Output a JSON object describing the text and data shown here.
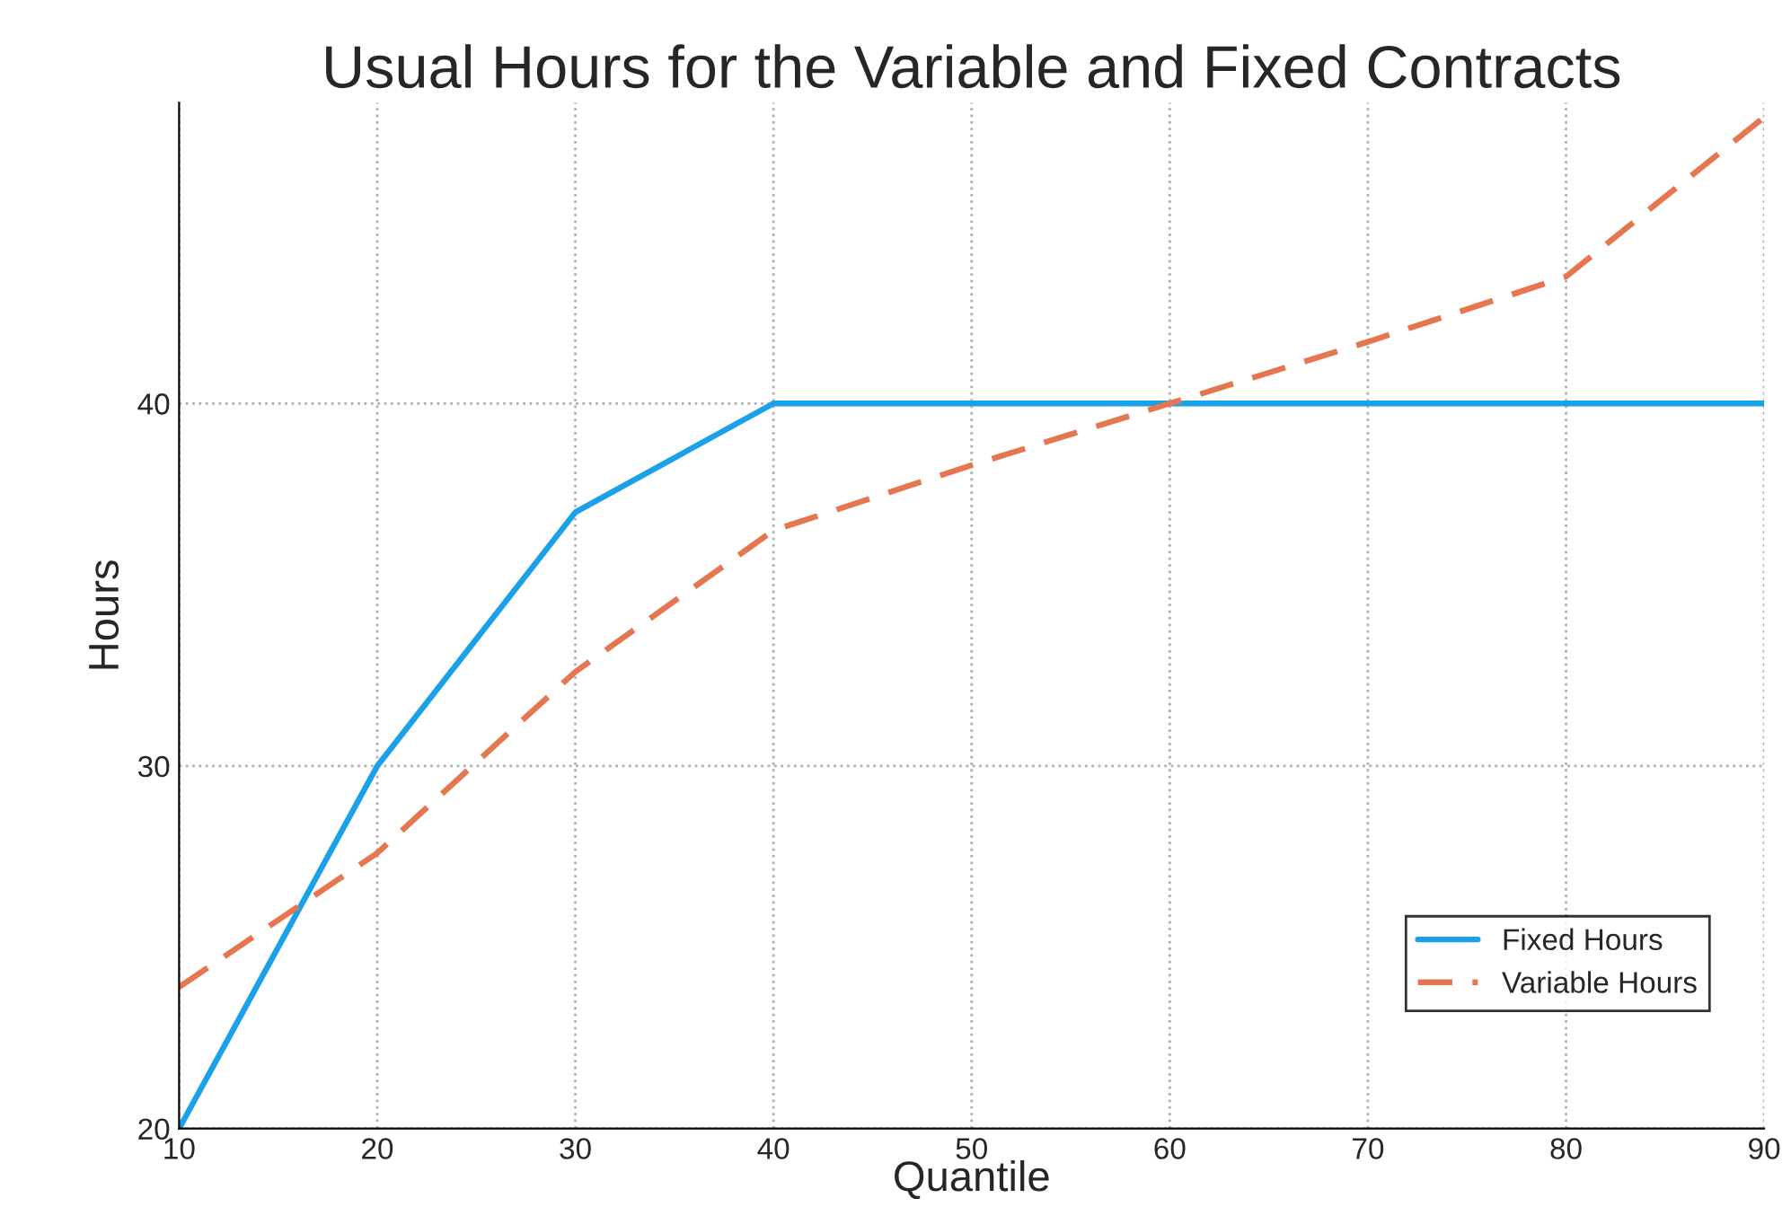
{
  "chart_data": {
    "type": "line",
    "title": "Usual Hours for the Variable and Fixed Contracts",
    "xlabel": "Quantile",
    "ylabel": "Hours",
    "x": [
      10,
      20,
      30,
      40,
      50,
      60,
      70,
      80,
      90
    ],
    "series": [
      {
        "name": "Fixed Hours",
        "color": "#1ba1ea",
        "line_style": "solid",
        "values": [
          20,
          30,
          37,
          40,
          40,
          40,
          40,
          40,
          40
        ]
      },
      {
        "name": "Variable Hours",
        "color": "#e67650",
        "line_style": "dashed",
        "values": [
          23.9,
          27.6,
          32.6,
          36.5,
          38.3,
          40,
          41.7,
          43.5,
          47.9
        ]
      }
    ],
    "xlim": [
      10,
      90
    ],
    "ylim": [
      20,
      48.3
    ],
    "xticks": [
      10,
      20,
      30,
      40,
      50,
      60,
      70,
      80,
      90
    ],
    "yticks": [
      20,
      30,
      40
    ],
    "grid": true,
    "legend": "bottom right",
    "marker": "none"
  }
}
